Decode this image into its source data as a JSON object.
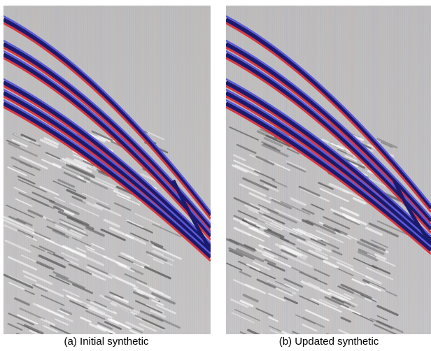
{
  "figure": {
    "panels": [
      {
        "caption": "(a) Initial synthetic"
      },
      {
        "caption": "(b) Updated synthetic"
      }
    ]
  }
}
